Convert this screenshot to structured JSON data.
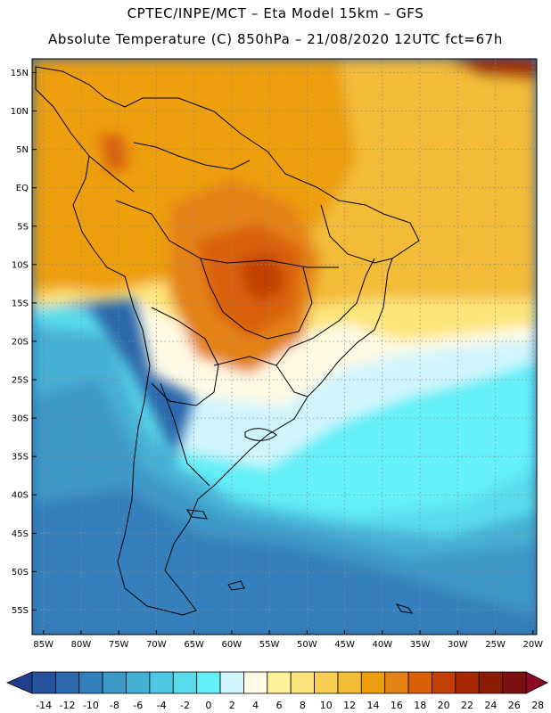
{
  "header": {
    "line1": "CPTEC/INPE/MCT –  Eta Model 15km – GFS",
    "line2": "Absolute Temperature (C) 850hPa – 21/08/2020 12UTC fct=67h"
  },
  "map": {
    "lat_labels": [
      "15N",
      "10N",
      "5N",
      "EQ",
      "5S",
      "10S",
      "15S",
      "20S",
      "25S",
      "30S",
      "35S",
      "40S",
      "45S",
      "50S",
      "55S"
    ],
    "lat_values": [
      15,
      10,
      5,
      0,
      -5,
      -10,
      -15,
      -20,
      -25,
      -30,
      -35,
      -40,
      -45,
      -50,
      -55
    ],
    "lon_labels": [
      "85W",
      "80W",
      "75W",
      "70W",
      "65W",
      "60W",
      "55W",
      "50W",
      "45W",
      "40W",
      "35W",
      "30W",
      "25W",
      "20W"
    ],
    "lon_values": [
      -85,
      -80,
      -75,
      -70,
      -65,
      -60,
      -55,
      -50,
      -45,
      -40,
      -35,
      -30,
      -25,
      -20
    ],
    "grid": "dotted",
    "coastline_color": "#000000"
  },
  "colorbar": {
    "labels": [
      "-14",
      "-12",
      "-10",
      "-8",
      "-6",
      "-4",
      "-2",
      "0",
      "2",
      "4",
      "6",
      "8",
      "10",
      "12",
      "14",
      "16",
      "18",
      "20",
      "22",
      "24",
      "26",
      "28"
    ],
    "colors": [
      "#1f3e8c",
      "#25549c",
      "#2b68ac",
      "#3480bc",
      "#3d98c8",
      "#46b0d4",
      "#4ec8e0",
      "#58dcec",
      "#64f0f8",
      "#d0f4fc",
      "#fffae4",
      "#fff09a",
      "#fde47a",
      "#f8cf52",
      "#f2bb38",
      "#ee9f10",
      "#e48214",
      "#da6008",
      "#c24006",
      "#a82a04",
      "#8c1c06",
      "#7a1010",
      "#880826"
    ]
  }
}
